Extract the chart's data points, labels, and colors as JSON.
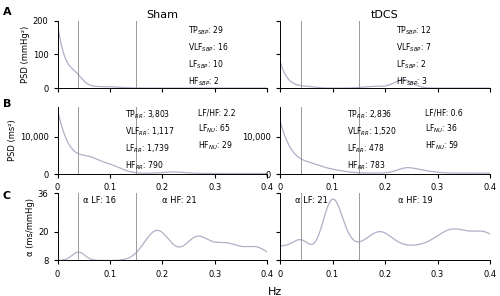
{
  "title_sham": "Sham",
  "title_tdcs": "tDCS",
  "ylabel_A": "PSD (mmHg²)",
  "ylabel_B": "PSD (ms²)",
  "ylabel_C": "α (ms/mmHg)",
  "xlabel": "Hz",
  "line_color": "#b0b0c8",
  "vline_color": "#999999",
  "vline_lw": 0.7,
  "sham_A_text1": "TP",
  "sham_A_text2": "VLF",
  "sham_A_text3": "LF",
  "sham_A_text4": "HF",
  "ylim_A": [
    0,
    200
  ],
  "yticks_A": [
    0,
    100,
    200
  ],
  "ylim_B": [
    0,
    18000
  ],
  "yticks_B": [
    0,
    10000
  ],
  "ylim_C": [
    8,
    36
  ],
  "yticks_C": [
    8,
    20,
    36
  ],
  "xlim": [
    0,
    0.4
  ],
  "xticks": [
    0,
    0.1,
    0.2,
    0.3,
    0.4
  ],
  "vline1": 0.04,
  "vline2": 0.15
}
